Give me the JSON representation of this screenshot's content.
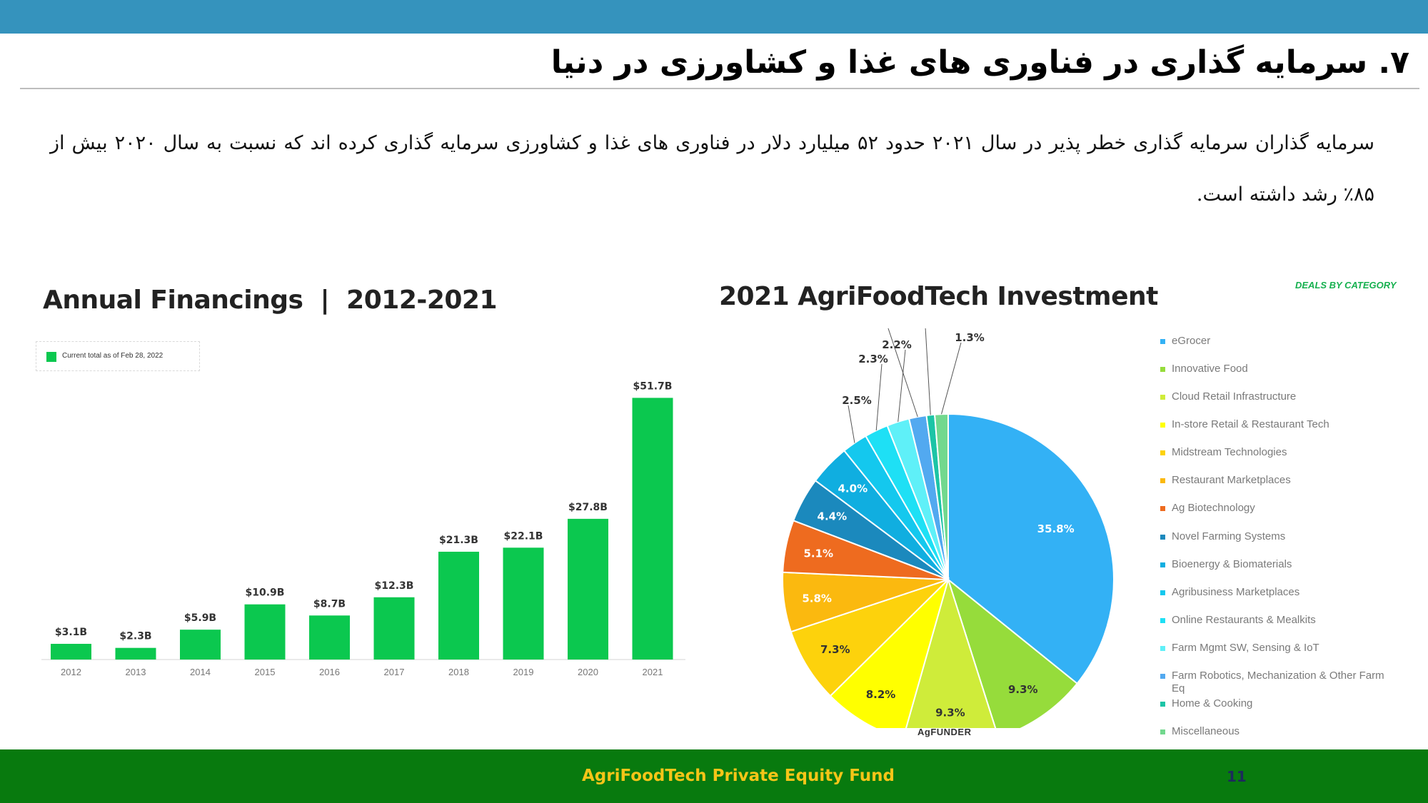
{
  "slide": {
    "title": "۷. سرمایه گذاری در فناوری های غذا و کشاورزی در دنیا",
    "body": "سرمایه گذاران سرمایه گذاری خطر پذیر در سال ۲۰۲۱ حدود ۵۲ میلیارد دلار در فناوری های غذا و کشاورزی سرمایه گذاری کرده اند که نسبت به سال ۲۰۲۰ بیش از ۸۵٪ رشد داشته است.",
    "source_logo": "AgFUNDER",
    "deals_label": "DEALS BY CATEGORY"
  },
  "footer": {
    "title": "AgriFoodTech Private Equity Fund",
    "page_number": "11"
  },
  "colors": {
    "top_bar": "#3593bd",
    "footer_bg": "#087a0e",
    "footer_text": "#f5c518",
    "bar_fill": "#0bc84f"
  },
  "chart_data": [
    {
      "type": "bar",
      "title": "Annual Financings  |  2012-2021",
      "legend": "Current total as of Feb 28, 2022",
      "categories": [
        "2012",
        "2013",
        "2014",
        "2015",
        "2016",
        "2017",
        "2018",
        "2019",
        "2020",
        "2021"
      ],
      "values": [
        3.1,
        2.3,
        5.9,
        10.9,
        8.7,
        12.3,
        21.3,
        22.1,
        27.8,
        51.7
      ],
      "data_labels": [
        "$3.1B",
        "$2.3B",
        "$5.9B",
        "$10.9B",
        "$8.7B",
        "$12.3B",
        "$21.3B",
        "$22.1B",
        "$27.8B",
        "$51.7B"
      ],
      "ylim": [
        0,
        55
      ],
      "grid": false
    },
    {
      "type": "pie",
      "title": "2021 AgriFoodTech Investment",
      "legend_position": "right",
      "series": [
        {
          "name": "eGrocer",
          "value": 35.8,
          "label": "35.8%",
          "color": "#33b1f5"
        },
        {
          "name": "Innovative Food",
          "value": 9.3,
          "label": "9.3%",
          "color": "#96dc3b"
        },
        {
          "name": "Cloud Retail Infrastructure",
          "value": 9.3,
          "label": "9.3%",
          "color": "#cfec3a"
        },
        {
          "name": "In-store Retail & Restaurant Tech",
          "value": 8.2,
          "label": "8.2%",
          "color": "#ffff00"
        },
        {
          "name": "Midstream Technologies",
          "value": 7.3,
          "label": "7.3%",
          "color": "#fdd20c"
        },
        {
          "name": "Restaurant Marketplaces",
          "value": 5.8,
          "label": "5.8%",
          "color": "#fbb90f"
        },
        {
          "name": "Ag Biotechnology",
          "value": 5.1,
          "label": "5.1%",
          "color": "#ee6b1f"
        },
        {
          "name": "Novel Farming Systems",
          "value": 4.4,
          "label": "4.4%",
          "color": "#1b89bd"
        },
        {
          "name": "Bioenergy & Biomaterials",
          "value": 4.0,
          "label": "4.0%",
          "color": "#10aee0"
        },
        {
          "name": "Agribusiness Marketplaces",
          "value": 2.5,
          "label": "2.5%",
          "color": "#14c8ee"
        },
        {
          "name": "Online Restaurants & Mealkits",
          "value": 2.3,
          "label": "2.3%",
          "color": "#1ee0f5"
        },
        {
          "name": "Farm Mgmt SW, Sensing & IoT",
          "value": 2.2,
          "label": "2.2%",
          "color": "#5ff0f8"
        },
        {
          "name": "Farm Robotics, Mechanization & Other Farm Eq",
          "value": 1.7,
          "label": "1.7%",
          "color": "#52a9f0"
        },
        {
          "name": "Home & Cooking",
          "value": 0.8,
          "label": "0.8%",
          "color": "#1cc4a6"
        },
        {
          "name": "Miscellaneous",
          "value": 1.3,
          "label": "1.3%",
          "color": "#72d88e"
        }
      ]
    }
  ]
}
